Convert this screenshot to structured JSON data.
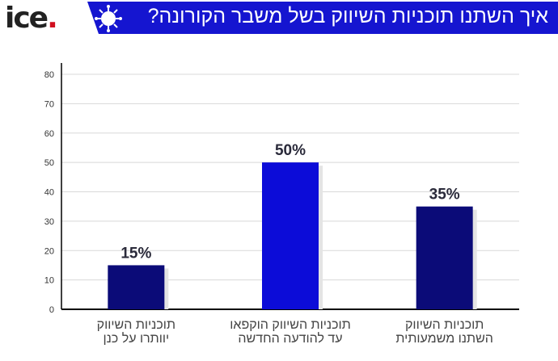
{
  "header": {
    "logo": "ice.",
    "title": "איך השתנו תוכניות השיווק בשל משבר הקורונה?",
    "icon": "virus-icon"
  },
  "chart_data": {
    "type": "bar",
    "title": "איך השתנו תוכניות השיווק בשל משבר הקורונה?",
    "categories": [
      [
        "תוכניות השיווק",
        "יוותרו על כנן"
      ],
      [
        "תוכניות השיווק הוקפאו",
        "עד להודעה החדשה"
      ],
      [
        "תוכניות השיווק",
        "השתנו משמעותית"
      ]
    ],
    "values": [
      15,
      50,
      35
    ],
    "data_labels": [
      "15%",
      "50%",
      "35%"
    ],
    "colors": [
      "#0b0b78",
      "#0c0cd8",
      "#0b0b78"
    ],
    "yticks": [
      0,
      10,
      20,
      30,
      40,
      50,
      60,
      70,
      80
    ],
    "ylim": [
      0,
      80
    ],
    "grid": true,
    "xlabel": "",
    "ylabel": ""
  }
}
